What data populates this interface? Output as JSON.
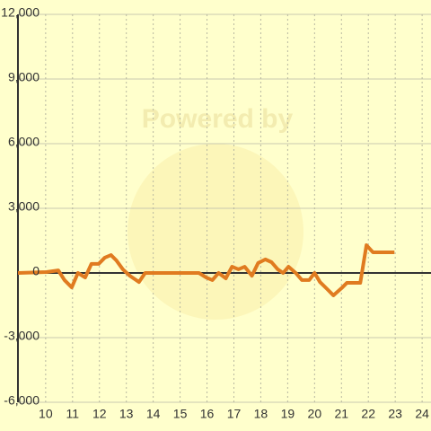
{
  "watermark": "Powered by",
  "chart_data": {
    "type": "line",
    "x": [
      8.97,
      10.03,
      10.47,
      10.7,
      10.97,
      11.2,
      11.47,
      11.7,
      11.97,
      12.2,
      12.43,
      12.63,
      12.87,
      13.13,
      13.47,
      13.7,
      13.97,
      15.7,
      15.97,
      16.2,
      16.43,
      16.7,
      16.93,
      17.17,
      17.4,
      17.67,
      17.9,
      18.17,
      18.4,
      18.63,
      18.83,
      19.03,
      19.3,
      19.53,
      19.8,
      20,
      20.2,
      20.47,
      20.7,
      21,
      21.2,
      21.7,
      21.93,
      22.17,
      22.97
    ],
    "series": [
      {
        "color": "#e07b20",
        "values": [
          0,
          40,
          120,
          -330,
          -670,
          0,
          -210,
          420,
          420,
          710,
          830,
          580,
          170,
          -130,
          -420,
          0,
          0,
          0,
          -210,
          -330,
          0,
          -250,
          290,
          170,
          290,
          -130,
          460,
          630,
          500,
          170,
          0,
          290,
          0,
          -330,
          -330,
          0,
          -420,
          -750,
          -1040,
          -710,
          -460,
          -460,
          1290,
          960,
          960
        ]
      }
    ],
    "xlim": [
      8.97,
      24.33
    ],
    "xticks": [
      10,
      11,
      12,
      13,
      14,
      15,
      16,
      17,
      18,
      19,
      20,
      21,
      22,
      23,
      24
    ],
    "ylim": [
      -6000,
      12000
    ],
    "yticks": [
      {
        "value": -6000,
        "label": "-6,000"
      },
      {
        "value": -3000,
        "label": "-3,000"
      },
      0,
      {
        "value": 3000,
        "label": "3,000"
      },
      {
        "value": 6000,
        "label": "6,000"
      },
      {
        "value": 9000,
        "label": "9,000"
      },
      {
        "value": 12000,
        "label": "12,000"
      }
    ],
    "grid": true
  }
}
